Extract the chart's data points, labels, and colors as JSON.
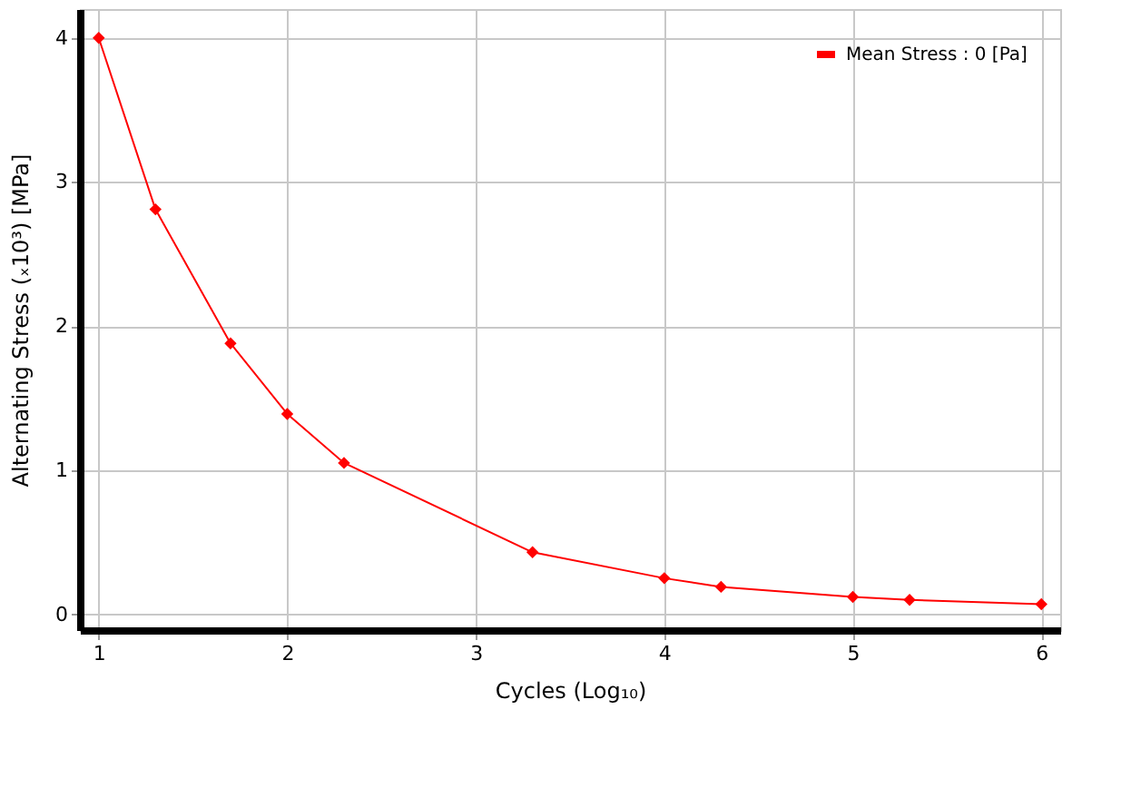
{
  "chart_data": {
    "type": "line",
    "xlabel": "Cycles (Log₁₀)",
    "ylabel": "Alternating Stress  (ₓ10³)  [MPa]",
    "x": [
      1,
      1.301,
      1.699,
      2,
      2.301,
      3.301,
      4,
      4.301,
      5,
      5.301,
      6
    ],
    "series": [
      {
        "name": "Mean Stress : 0 [Pa]",
        "color": "#ff0000",
        "values": [
          4.0,
          2.81,
          1.88,
          1.39,
          1.05,
          0.43,
          0.25,
          0.19,
          0.12,
          0.1,
          0.07
        ]
      }
    ],
    "xlim": [
      0.9,
      6.1
    ],
    "xticks": [
      1,
      2,
      3,
      4,
      5,
      6
    ],
    "ylim": [
      -0.11,
      4.2
    ],
    "yticks": [
      0,
      1,
      2,
      3,
      4
    ],
    "grid": true,
    "legend": "top right",
    "marker": "diamond",
    "line_style": "solid"
  }
}
